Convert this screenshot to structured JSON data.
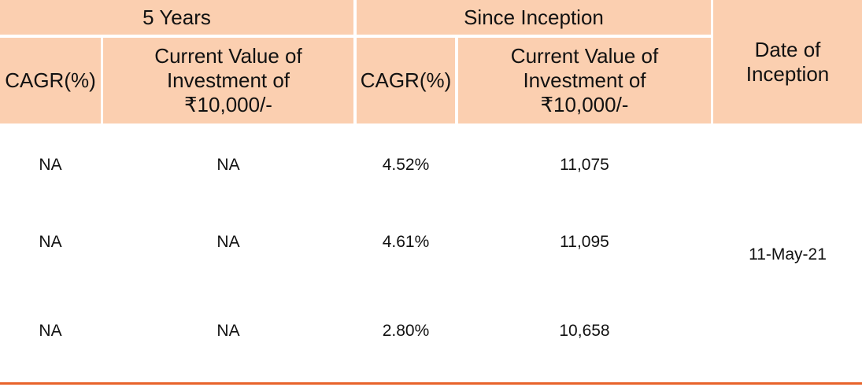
{
  "table": {
    "group_headers": {
      "five_years": "5 Years",
      "since_inception": "Since Inception"
    },
    "column_headers": {
      "cagr_5y": "CAGR(%)",
      "value_5y": "Current Value of Investment of ₹10,000/-",
      "cagr_si": "CAGR(%)",
      "value_si": "Current Value of Investment of ₹10,000/-",
      "date_of_inception": "Date of Inception"
    },
    "rows": [
      {
        "cagr_5y": "NA",
        "value_5y": "NA",
        "cagr_si": "4.52%",
        "value_si": "11,075"
      },
      {
        "cagr_5y": "NA",
        "value_5y": "NA",
        "cagr_si": "4.61%",
        "value_si": "11,095"
      },
      {
        "cagr_5y": "NA",
        "value_5y": "NA",
        "cagr_si": "2.80%",
        "value_si": "10,658"
      }
    ],
    "date_of_inception_value": "11-May-21"
  },
  "colors": {
    "header_bg": "#fbcfb0",
    "rule": "#e8632a"
  }
}
